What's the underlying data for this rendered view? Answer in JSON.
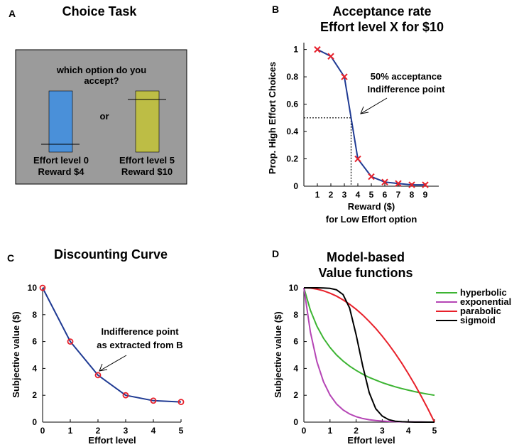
{
  "panels": {
    "a": {
      "letter": "A",
      "title": "Choice Task",
      "question_line1": "which option do you",
      "question_line2": "accept?",
      "or_label": "or",
      "option_left": {
        "line1": "Effort level 0",
        "line2": "Reward $4",
        "effort": 0,
        "color": "#4a90d9"
      },
      "option_right": {
        "line1": "Effort level 5",
        "line2": "Reward $10",
        "effort": 5,
        "color": "#bdbd45"
      },
      "background_color": "#9b9b9b"
    },
    "b": {
      "letter": "B",
      "annotation_line1": "50% acceptance",
      "annotation_line2": "Indifference point"
    },
    "c": {
      "letter": "C",
      "annotation_line1": "Indifference point",
      "annotation_line2": "as extracted from B"
    },
    "d": {
      "letter": "D"
    }
  },
  "chart_data": [
    {
      "id": "b",
      "type": "line",
      "title_line1": "Acceptance rate",
      "title_line2": "Effort level X for $10",
      "xlabel_line1": "Reward ($)",
      "xlabel_line2": "for Low Effort option",
      "ylabel": "Prop. High Effort Choices",
      "xlim": [
        0,
        10
      ],
      "ylim": [
        0,
        1.05
      ],
      "xticks": [
        1,
        2,
        3,
        4,
        5,
        6,
        7,
        8,
        9
      ],
      "yticks": [
        0,
        0.2,
        0.4,
        0.6,
        0.8,
        1
      ],
      "ytick_labels": [
        "0",
        "0.2",
        "0.4",
        "0.6",
        "0.8",
        "1"
      ],
      "series": [
        {
          "name": "acceptance",
          "color": "#1f3a93",
          "marker": "x",
          "marker_color": "#e8202a",
          "x": [
            1,
            2,
            3,
            4,
            5,
            6,
            7,
            8,
            9
          ],
          "y": [
            1.0,
            0.95,
            0.8,
            0.2,
            0.07,
            0.03,
            0.02,
            0.01,
            0.01
          ]
        }
      ],
      "indifference_point": {
        "x": 3.5,
        "y": 0.5
      }
    },
    {
      "id": "c",
      "type": "line",
      "title": "Discounting Curve",
      "xlabel": "Effort level",
      "ylabel": "Subjective value ($)",
      "xlim": [
        0,
        5
      ],
      "ylim": [
        0,
        10
      ],
      "xticks": [
        0,
        1,
        2,
        3,
        4,
        5
      ],
      "yticks": [
        0,
        2,
        4,
        6,
        8,
        10
      ],
      "series": [
        {
          "name": "discounting",
          "color": "#1f3a93",
          "marker": "o",
          "marker_color": "#e8202a",
          "x": [
            0,
            1,
            2,
            3,
            4,
            5
          ],
          "y": [
            10,
            6,
            3.5,
            2,
            1.6,
            1.5
          ]
        }
      ]
    },
    {
      "id": "d",
      "type": "line",
      "title_line1": "Model-based",
      "title_line2": "Value functions",
      "xlabel": "Effort level",
      "ylabel": "Subjective value ($)",
      "xlim": [
        0,
        5
      ],
      "ylim": [
        0,
        10
      ],
      "xticks": [
        0,
        1,
        2,
        3,
        4,
        5
      ],
      "yticks": [
        0,
        2,
        4,
        6,
        8,
        10
      ],
      "legend_position": "right",
      "series": [
        {
          "name": "hyperbolic",
          "color": "#3cb432",
          "x": [
            0,
            0.25,
            0.5,
            0.75,
            1,
            1.25,
            1.5,
            1.75,
            2,
            2.25,
            2.5,
            2.75,
            3,
            3.25,
            3.5,
            3.75,
            4,
            4.25,
            4.5,
            4.75,
            5
          ],
          "y": [
            10,
            8.33,
            7.14,
            6.25,
            5.56,
            5.0,
            4.55,
            4.17,
            3.85,
            3.57,
            3.33,
            3.13,
            2.94,
            2.78,
            2.63,
            2.5,
            2.38,
            2.27,
            2.17,
            2.08,
            2.0
          ]
        },
        {
          "name": "exponential",
          "color": "#b545b5",
          "x": [
            0,
            0.25,
            0.5,
            0.75,
            1,
            1.25,
            1.5,
            1.75,
            2,
            2.25,
            2.5,
            2.75,
            3,
            3.25,
            3.5,
            3.75,
            4,
            4.25,
            4.5,
            4.75,
            5
          ],
          "y": [
            10,
            6.7,
            4.49,
            3.01,
            2.02,
            1.35,
            0.91,
            0.61,
            0.41,
            0.27,
            0.18,
            0.12,
            0.08,
            0.05,
            0.04,
            0.02,
            0.02,
            0.01,
            0.01,
            0.0,
            0.0
          ]
        },
        {
          "name": "parabolic",
          "color": "#e8202a",
          "x": [
            0,
            0.25,
            0.5,
            0.75,
            1,
            1.25,
            1.5,
            1.75,
            2,
            2.25,
            2.5,
            2.75,
            3,
            3.25,
            3.5,
            3.75,
            4,
            4.25,
            4.5,
            4.75,
            5
          ],
          "y": [
            10,
            9.98,
            9.9,
            9.78,
            9.6,
            9.38,
            9.1,
            8.78,
            8.4,
            7.98,
            7.5,
            6.98,
            6.4,
            5.78,
            5.1,
            4.38,
            3.6,
            2.78,
            1.9,
            0.98,
            0
          ]
        },
        {
          "name": "sigmoid",
          "color": "#000000",
          "x": [
            0,
            0.25,
            0.5,
            0.75,
            1,
            1.25,
            1.5,
            1.75,
            2,
            2.25,
            2.5,
            2.75,
            3,
            3.25,
            3.5,
            3.75,
            4,
            4.25,
            4.5,
            4.75,
            5
          ],
          "y": [
            10,
            10,
            10,
            9.99,
            9.96,
            9.85,
            9.5,
            8.5,
            6.5,
            4.2,
            2.2,
            1.0,
            0.45,
            0.18,
            0.07,
            0.03,
            0.01,
            0,
            0,
            0,
            0
          ]
        }
      ]
    }
  ]
}
